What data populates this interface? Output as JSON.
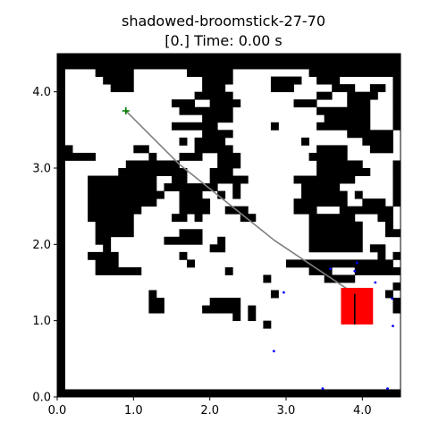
{
  "figure": {
    "title_line1": "shadowed-broomstick-27-70",
    "title_line2": "[0.] Time: 0.00 s"
  },
  "axes": {
    "xlim": [
      0,
      4.5
    ],
    "ylim": [
      0,
      4.5
    ],
    "xticks": [
      "0.0",
      "1.0",
      "2.0",
      "3.0",
      "4.0"
    ],
    "yticks": [
      "0.0",
      "1.0",
      "2.0",
      "3.0",
      "4.0"
    ]
  },
  "colors": {
    "wall": "#000000",
    "free": "#ffffff",
    "path": "#808080",
    "start": "#007f00",
    "robot": "#ff0000",
    "samples": "#0000ff"
  },
  "map": {
    "cell": 0.1,
    "rows": [
      "#############################################",
      "#############################################",
      "#....#####.......######..........############",
      "#.....####.........####.....####..###.......#",
      "#......###.........###......###.....###..##.#",
      "#.................#####...........##..####..#",
      "#..............###..####.......###....###...#",
      "#...............#######...........#######...#",
      "#..................####............######...#",
      "#..............######.......#.....#######...#",
      "#..................####...............######.",
      "#...............#.####..........#.......####.",
      "##........##......#####...........####...###.",
      "#####.......#...###..###.........#####.......",
      "#........#######.....###..........######....#",
      "#.......#########...###...........#######...#",
      "#...#########..##...#####......########.....#",
      "#...#########.#######..#........#####.......#",
      "#...##########..###..#.#........######.#....#",
      "#...#########...####...........#######..###.#",
      "#...#######.....####..###......###...#######.",
      "#...######.....##.#.....##.......######...##.",
      "#....#####.......................#######...#.",
      "#....#####......###..............#######...##",
      "#....##.......#####..#...........#######.....",
      "#.....#.............##...........#######.##..",
      "#...####........#.........................#.#",
      "#....###.........#............##############",
      "#....######...........#..........###...######",
      "#..........................#.......####......",
      "#...........................................#",
      "#...........#...............#..............#.",
      "#...........##......####....................#",
      "#...........##.....#####.#..................#",
      "#......................#.#...................",
      "#..........................#.................",
      "#............................................",
      "#............................................",
      "#............................................",
      "#............................................",
      "#............................................",
      "#............................................",
      "#............................................",
      "#............................................",
      "#############################################"
    ]
  },
  "path_points": [
    [
      0.9,
      3.75
    ],
    [
      1.6,
      3.05
    ],
    [
      2.85,
      2.05
    ],
    [
      3.9,
      1.35
    ]
  ],
  "start": [
    0.9,
    3.75
  ],
  "robot": {
    "x": 3.72,
    "y": 0.95,
    "w": 0.42,
    "h": 0.48,
    "stick_x": 3.9,
    "stick_y0": 0.95,
    "stick_y1": 1.35
  },
  "samples": [
    [
      3.58,
      1.68
    ],
    [
      3.93,
      1.76
    ],
    [
      4.17,
      1.5
    ],
    [
      4.39,
      1.29
    ],
    [
      4.4,
      0.93
    ],
    [
      2.97,
      1.37
    ],
    [
      2.84,
      0.6
    ],
    [
      3.48,
      0.11
    ],
    [
      4.33,
      0.11
    ],
    [
      3.9,
      1.65
    ]
  ]
}
